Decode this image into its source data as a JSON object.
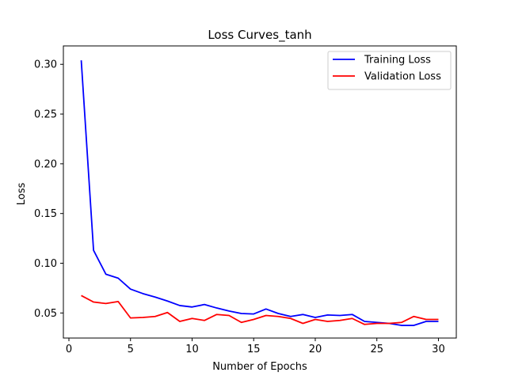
{
  "chart_data": {
    "type": "line",
    "title": "Loss Curves_tanh",
    "xlabel": "Number of Epochs",
    "ylabel": "Loss",
    "xlim": [
      -0.45,
      31.45
    ],
    "ylim": [
      0.0248,
      0.3185
    ],
    "xticks": [
      0,
      5,
      10,
      15,
      20,
      25,
      30
    ],
    "yticks": [
      0.05,
      0.1,
      0.15,
      0.2,
      0.25,
      0.3
    ],
    "ytick_labels": [
      "0.05",
      "0.10",
      "0.15",
      "0.20",
      "0.25",
      "0.30"
    ],
    "grid": false,
    "legend_position": "top-right",
    "x": [
      1,
      2,
      3,
      4,
      5,
      6,
      7,
      8,
      9,
      10,
      11,
      12,
      13,
      14,
      15,
      16,
      17,
      18,
      19,
      20,
      21,
      22,
      23,
      24,
      25,
      26,
      27,
      28,
      29,
      30
    ],
    "series": [
      {
        "name": "Training Loss",
        "color": "#0000ff",
        "values": [
          0.304,
          0.113,
          0.089,
          0.085,
          0.074,
          0.0695,
          0.066,
          0.062,
          0.0575,
          0.056,
          0.0585,
          0.055,
          0.052,
          0.0495,
          0.049,
          0.054,
          0.0495,
          0.0465,
          0.0485,
          0.0455,
          0.048,
          0.0475,
          0.0485,
          0.0415,
          0.0405,
          0.0395,
          0.0375,
          0.0375,
          0.0415,
          0.0415
        ]
      },
      {
        "name": "Validation Loss",
        "color": "#ff0000",
        "values": [
          0.0675,
          0.061,
          0.0595,
          0.0615,
          0.045,
          0.0455,
          0.0465,
          0.0505,
          0.0415,
          0.0445,
          0.0425,
          0.0485,
          0.0475,
          0.0405,
          0.0435,
          0.0475,
          0.0465,
          0.0445,
          0.0395,
          0.0435,
          0.0415,
          0.0425,
          0.0445,
          0.0385,
          0.0395,
          0.0395,
          0.0405,
          0.0465,
          0.0435,
          0.0435
        ]
      }
    ]
  }
}
